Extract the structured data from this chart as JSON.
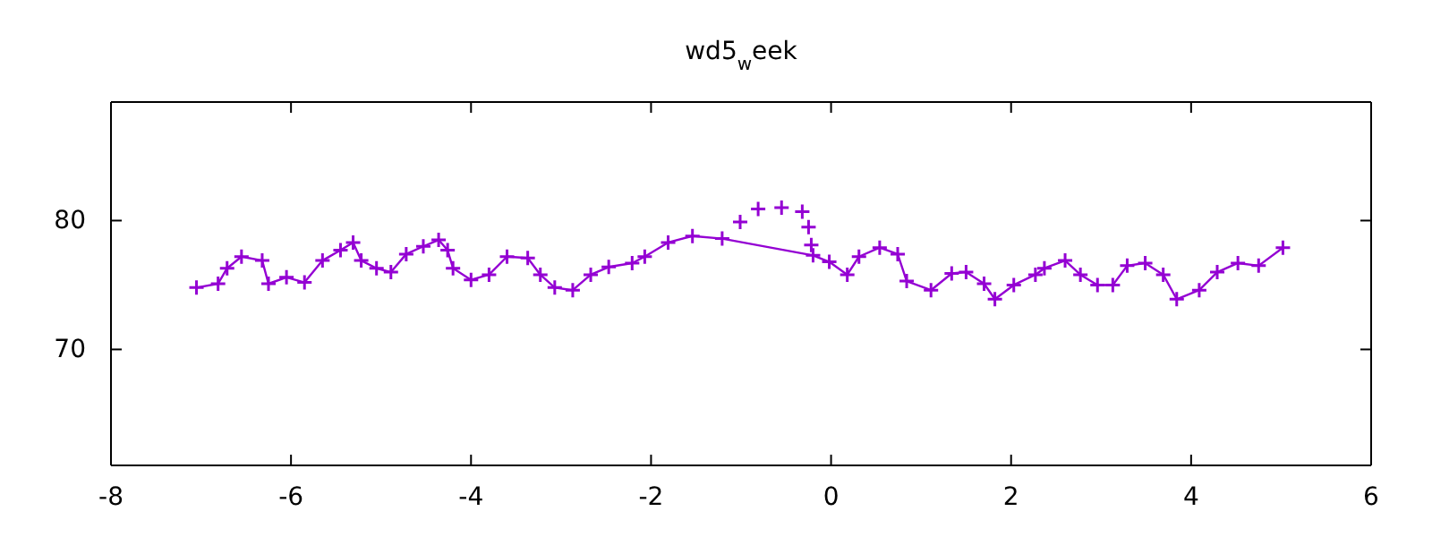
{
  "chart_data": {
    "type": "line",
    "title": "wd5$_{w}$eek",
    "xlim": [
      -8,
      6
    ],
    "xticks": [
      -8,
      -6,
      -4,
      -2,
      0,
      2,
      4,
      6
    ],
    "ylim": [
      61,
      89.2
    ],
    "yticks": [
      70,
      80
    ],
    "grid": false,
    "marker": "cross",
    "line_style": "solid",
    "series": [
      {
        "color": "#9400d3",
        "x": [
          -7.05,
          -6.81,
          -6.71,
          -6.55,
          -6.32,
          -6.25,
          -6.05,
          -5.85,
          -5.65,
          -5.45,
          -5.31,
          -5.22,
          -5.05,
          -4.89,
          -4.72,
          -4.53,
          -4.36,
          -4.26,
          -4.2,
          -4.0,
          -3.8,
          -3.6,
          -3.37,
          -3.23,
          -3.07,
          -2.87,
          -2.67,
          -2.47,
          -2.21,
          -2.07,
          -1.81,
          -1.54,
          -1.21,
          -0.2,
          -0.02,
          0.18,
          0.31,
          0.54,
          0.74,
          0.84,
          1.11,
          1.34,
          1.5,
          1.7,
          1.82,
          2.03,
          2.27,
          2.37,
          2.6,
          2.77,
          2.96,
          3.13,
          3.29,
          3.49,
          3.69,
          3.84,
          4.09,
          4.29,
          4.52,
          4.75,
          5.02
        ],
        "values": [
          74.8,
          75.1,
          76.3,
          77.2,
          76.9,
          75.1,
          75.6,
          75.2,
          76.9,
          77.7,
          78.3,
          76.9,
          76.3,
          76.0,
          77.4,
          78.0,
          78.5,
          77.7,
          76.3,
          75.4,
          75.8,
          77.2,
          77.1,
          75.8,
          74.8,
          74.6,
          75.8,
          76.4,
          76.7,
          77.2,
          78.3,
          78.8,
          78.6,
          77.3,
          76.8,
          75.8,
          77.2,
          77.9,
          77.4,
          75.3,
          74.6,
          75.9,
          76.0,
          75.1,
          73.9,
          75.0,
          75.8,
          76.3,
          76.9,
          75.8,
          75.0,
          75.0,
          76.5,
          76.7,
          75.8,
          73.9,
          74.6,
          76.0,
          76.7,
          76.5,
          77.9
        ]
      },
      {
        "type": "scatter",
        "color": "#9400d3",
        "x": [
          -1.01,
          -0.81,
          -0.55,
          -0.32,
          -0.25,
          -0.22
        ],
        "values": [
          79.9,
          80.9,
          81.0,
          80.7,
          79.5,
          78.1
        ]
      }
    ]
  }
}
